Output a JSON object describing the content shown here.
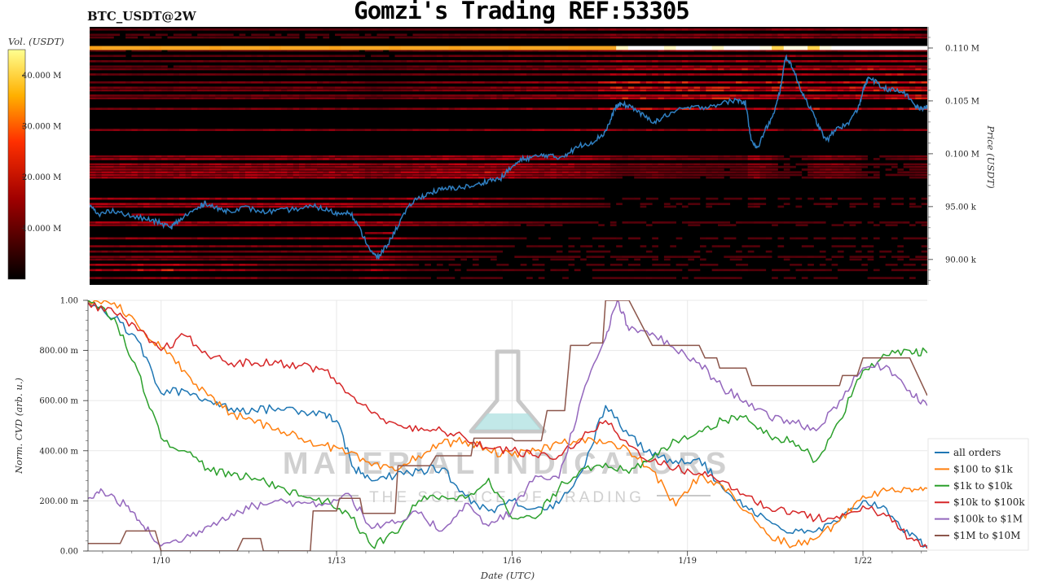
{
  "header": {
    "title": "Gomzi's Trading REF:53305",
    "symbol": "BTC_USDT@2W"
  },
  "colors": {
    "heatmap_low": "#000000",
    "heatmap_mid": "#c01010",
    "heatmap_high": "#ffa500",
    "heatmap_max": "#ffffff",
    "price_line": "#2f7fc1",
    "watermark": "#c8c8c8"
  },
  "watermark": {
    "brand": "MATERIAL INDICATORS",
    "tagline": "THE SCIENCE OF TRADING",
    "icon": "flask-icon"
  },
  "chart_data": [
    {
      "type": "heatmap",
      "name_hint": "orderbook-heatmap",
      "ylabel": "Price (USDT)",
      "ylim": [
        87600,
        112000
      ],
      "y_ticks": [
        {
          "value": 110000,
          "label": "0.110 M"
        },
        {
          "value": 105000,
          "label": "0.105 M"
        },
        {
          "value": 100000,
          "label": "0.100 M"
        },
        {
          "value": 95000,
          "label": "95.00 k"
        },
        {
          "value": 90000,
          "label": "90.00 k"
        }
      ],
      "colorbar": {
        "label": "Vol. (USDT)",
        "ticks": [
          {
            "value": 40000000,
            "label": "40.000 M"
          },
          {
            "value": 30000000,
            "label": "30.000 M"
          },
          {
            "value": 20000000,
            "label": "20.000 M"
          },
          {
            "value": 10000000,
            "label": "10.000 M"
          }
        ],
        "range": [
          0,
          45000000
        ]
      },
      "bright_band": {
        "price": 110000
      },
      "price_series": {
        "x_day_range": [
          8.6,
          23.1
        ],
        "points": [
          [
            8.6,
            95100
          ],
          [
            8.75,
            94200
          ],
          [
            9.0,
            94700
          ],
          [
            9.3,
            94100
          ],
          [
            9.6,
            93800
          ],
          [
            9.8,
            93500
          ],
          [
            10.0,
            93000
          ],
          [
            10.1,
            93500
          ],
          [
            10.3,
            94300
          ],
          [
            10.5,
            94900
          ],
          [
            10.6,
            95400
          ],
          [
            10.8,
            94800
          ],
          [
            11.0,
            94600
          ],
          [
            11.3,
            94900
          ],
          [
            11.6,
            94500
          ],
          [
            11.9,
            94600
          ],
          [
            12.2,
            94800
          ],
          [
            12.5,
            95000
          ],
          [
            12.7,
            94700
          ],
          [
            12.9,
            94300
          ],
          [
            13.1,
            94600
          ],
          [
            13.3,
            92600
          ],
          [
            13.5,
            90500
          ],
          [
            13.6,
            90200
          ],
          [
            13.8,
            91800
          ],
          [
            14.0,
            93900
          ],
          [
            14.2,
            95500
          ],
          [
            14.4,
            96100
          ],
          [
            14.6,
            96500
          ],
          [
            14.8,
            96700
          ],
          [
            15.0,
            96800
          ],
          [
            15.3,
            97000
          ],
          [
            15.5,
            97500
          ],
          [
            15.7,
            97600
          ],
          [
            15.9,
            98700
          ],
          [
            16.1,
            99500
          ],
          [
            16.3,
            99700
          ],
          [
            16.5,
            99900
          ],
          [
            16.7,
            99600
          ],
          [
            16.9,
            100100
          ],
          [
            17.1,
            100800
          ],
          [
            17.3,
            101100
          ],
          [
            17.5,
            101900
          ],
          [
            17.6,
            102900
          ],
          [
            17.7,
            104400
          ],
          [
            17.8,
            104700
          ],
          [
            18.0,
            104400
          ],
          [
            18.2,
            103500
          ],
          [
            18.4,
            103000
          ],
          [
            18.6,
            103700
          ],
          [
            18.9,
            104300
          ],
          [
            19.2,
            104400
          ],
          [
            19.5,
            104700
          ],
          [
            19.8,
            105100
          ],
          [
            19.95,
            104800
          ],
          [
            20.05,
            101500
          ],
          [
            20.15,
            100400
          ],
          [
            20.3,
            102300
          ],
          [
            20.45,
            103800
          ],
          [
            20.55,
            106000
          ],
          [
            20.65,
            109200
          ],
          [
            20.75,
            108400
          ],
          [
            20.9,
            106200
          ],
          [
            21.05,
            104600
          ],
          [
            21.2,
            102800
          ],
          [
            21.35,
            101200
          ],
          [
            21.55,
            102500
          ],
          [
            21.7,
            102700
          ],
          [
            21.9,
            104200
          ],
          [
            22.0,
            106200
          ],
          [
            22.1,
            107300
          ],
          [
            22.3,
            106300
          ],
          [
            22.5,
            106000
          ],
          [
            22.7,
            105800
          ],
          [
            22.9,
            104500
          ],
          [
            23.0,
            104200
          ],
          [
            23.1,
            104600
          ]
        ]
      }
    },
    {
      "type": "line",
      "name_hint": "cvd-chart",
      "xlabel": "Date (UTC)",
      "ylabel": "Norm. CVD (arb. u.)",
      "xlim": [
        8.75,
        23.1
      ],
      "ylim": [
        0,
        1
      ],
      "x_ticks": [
        {
          "value": 10,
          "label": "1/10"
        },
        {
          "value": 13,
          "label": "1/13"
        },
        {
          "value": 16,
          "label": "1/16"
        },
        {
          "value": 19,
          "label": "1/19"
        },
        {
          "value": 22,
          "label": "1/22"
        }
      ],
      "y_ticks": [
        {
          "value": 1.0,
          "label": "1.00"
        },
        {
          "value": 0.8,
          "label": "800.00 m"
        },
        {
          "value": 0.6,
          "label": "600.00 m"
        },
        {
          "value": 0.4,
          "label": "400.00 m"
        },
        {
          "value": 0.2,
          "label": "200.00 m"
        },
        {
          "value": 0.0,
          "label": "0.00"
        }
      ],
      "legend_position": "right",
      "series": [
        {
          "name": "all orders",
          "color": "#1f77b4",
          "x": [
            8.75,
            9.2,
            9.6,
            10.0,
            10.4,
            10.8,
            11.2,
            11.6,
            12.0,
            12.4,
            12.8,
            13.0,
            13.3,
            13.6,
            14.0,
            14.4,
            14.8,
            15.2,
            15.6,
            16.0,
            16.4,
            16.8,
            17.2,
            17.6,
            18.0,
            18.4,
            18.8,
            19.2,
            19.6,
            20.0,
            20.4,
            20.8,
            21.2,
            21.6,
            22.0,
            22.4,
            22.8,
            23.1
          ],
          "y": [
            1.0,
            0.93,
            0.84,
            0.63,
            0.64,
            0.6,
            0.57,
            0.56,
            0.57,
            0.56,
            0.55,
            0.52,
            0.33,
            0.28,
            0.3,
            0.32,
            0.33,
            0.22,
            0.16,
            0.2,
            0.17,
            0.19,
            0.32,
            0.58,
            0.46,
            0.38,
            0.36,
            0.37,
            0.25,
            0.18,
            0.12,
            0.07,
            0.08,
            0.12,
            0.2,
            0.17,
            0.06,
            0.02
          ]
        },
        {
          "name": "$100 to $1k",
          "color": "#ff7f0e",
          "x": [
            8.75,
            9.2,
            9.6,
            10.0,
            10.4,
            10.8,
            11.2,
            11.6,
            12.0,
            12.4,
            12.8,
            13.2,
            13.6,
            14.0,
            14.4,
            14.8,
            15.2,
            15.6,
            16.0,
            16.4,
            16.8,
            17.2,
            17.6,
            18.0,
            18.4,
            18.8,
            19.2,
            19.6,
            20.0,
            20.4,
            20.8,
            21.2,
            21.6,
            22.0,
            22.4,
            22.8,
            23.1
          ],
          "y": [
            1.0,
            0.99,
            0.9,
            0.81,
            0.72,
            0.62,
            0.55,
            0.51,
            0.49,
            0.45,
            0.42,
            0.39,
            0.34,
            0.32,
            0.38,
            0.43,
            0.44,
            0.4,
            0.38,
            0.4,
            0.43,
            0.45,
            0.43,
            0.4,
            0.32,
            0.18,
            0.3,
            0.26,
            0.16,
            0.06,
            0.02,
            0.05,
            0.12,
            0.22,
            0.24,
            0.25,
            0.25
          ]
        },
        {
          "name": "$1k to $10k",
          "color": "#2ca02c",
          "x": [
            8.75,
            9.2,
            9.6,
            10.0,
            10.4,
            10.8,
            11.2,
            11.6,
            12.0,
            12.4,
            12.8,
            13.2,
            13.6,
            14.0,
            14.4,
            14.8,
            15.2,
            15.6,
            16.0,
            16.4,
            16.8,
            17.2,
            17.6,
            18.0,
            18.4,
            18.8,
            19.2,
            19.6,
            20.0,
            20.4,
            20.8,
            21.2,
            21.6,
            22.0,
            22.4,
            22.8,
            23.1
          ],
          "y": [
            1.0,
            0.93,
            0.72,
            0.45,
            0.4,
            0.33,
            0.3,
            0.29,
            0.26,
            0.22,
            0.2,
            0.15,
            0.02,
            0.07,
            0.2,
            0.22,
            0.21,
            0.29,
            0.13,
            0.13,
            0.25,
            0.33,
            0.35,
            0.31,
            0.37,
            0.44,
            0.48,
            0.52,
            0.54,
            0.46,
            0.44,
            0.36,
            0.52,
            0.72,
            0.78,
            0.8,
            0.79
          ]
        },
        {
          "name": "$10k to $100k",
          "color": "#d62728",
          "x": [
            8.75,
            9.2,
            9.6,
            10.0,
            10.4,
            10.8,
            11.2,
            11.6,
            12.0,
            12.4,
            12.8,
            13.2,
            13.6,
            14.0,
            14.4,
            14.8,
            15.2,
            15.6,
            16.0,
            16.4,
            16.8,
            17.2,
            17.6,
            18.0,
            18.4,
            18.8,
            19.2,
            19.6,
            20.0,
            20.4,
            20.8,
            21.2,
            21.6,
            22.0,
            22.4,
            22.8,
            23.1
          ],
          "y": [
            0.99,
            0.95,
            0.88,
            0.8,
            0.86,
            0.78,
            0.75,
            0.75,
            0.75,
            0.74,
            0.72,
            0.63,
            0.55,
            0.51,
            0.48,
            0.48,
            0.45,
            0.41,
            0.4,
            0.38,
            0.38,
            0.45,
            0.52,
            0.42,
            0.36,
            0.33,
            0.31,
            0.28,
            0.22,
            0.17,
            0.16,
            0.13,
            0.13,
            0.18,
            0.14,
            0.05,
            0.01
          ]
        },
        {
          "name": "$100k to $1M",
          "color": "#9467bd",
          "x": [
            8.75,
            9.0,
            9.4,
            9.7,
            10.0,
            10.4,
            10.8,
            11.2,
            11.6,
            12.0,
            12.4,
            12.8,
            13.2,
            13.6,
            14.0,
            14.4,
            14.8,
            15.2,
            15.6,
            16.0,
            16.4,
            16.8,
            17.2,
            17.6,
            17.8,
            18.0,
            18.4,
            18.8,
            19.2,
            19.6,
            20.0,
            20.4,
            20.8,
            21.2,
            21.6,
            22.0,
            22.4,
            22.8,
            23.1
          ],
          "y": [
            0.21,
            0.24,
            0.18,
            0.1,
            0.02,
            0.05,
            0.1,
            0.15,
            0.18,
            0.2,
            0.19,
            0.19,
            0.23,
            0.09,
            0.11,
            0.15,
            0.08,
            0.19,
            0.1,
            0.16,
            0.3,
            0.29,
            0.62,
            0.85,
            1.0,
            0.88,
            0.87,
            0.8,
            0.75,
            0.65,
            0.6,
            0.53,
            0.52,
            0.48,
            0.6,
            0.73,
            0.74,
            0.64,
            0.58
          ]
        },
        {
          "name": "$1M to $10M",
          "color": "#8c564b",
          "x": [
            8.75,
            9.3,
            9.4,
            9.9,
            10.0,
            11.3,
            11.4,
            11.7,
            11.75,
            12.0,
            12.55,
            12.6,
            13.0,
            13.05,
            13.4,
            13.45,
            14.0,
            14.05,
            14.6,
            14.7,
            15.3,
            15.35,
            16.0,
            16.05,
            16.5,
            16.6,
            16.9,
            17.0,
            17.3,
            17.35,
            17.55,
            17.6,
            18.0,
            18.4,
            18.5,
            19.2,
            19.3,
            19.5,
            19.55,
            20.0,
            20.1,
            20.7,
            21.6,
            21.65,
            21.9,
            22.0,
            22.3,
            22.8,
            23.1
          ],
          "y": [
            0.03,
            0.03,
            0.08,
            0.08,
            0.0,
            0.0,
            0.05,
            0.05,
            0.0,
            0.0,
            0.0,
            0.16,
            0.16,
            0.21,
            0.21,
            0.15,
            0.15,
            0.34,
            0.34,
            0.38,
            0.38,
            0.45,
            0.45,
            0.44,
            0.44,
            0.56,
            0.56,
            0.82,
            0.82,
            0.83,
            0.83,
            1.0,
            1.0,
            0.82,
            0.82,
            0.82,
            0.77,
            0.77,
            0.73,
            0.73,
            0.66,
            0.66,
            0.66,
            0.7,
            0.7,
            0.77,
            0.77,
            0.77,
            0.62
          ]
        }
      ]
    }
  ]
}
